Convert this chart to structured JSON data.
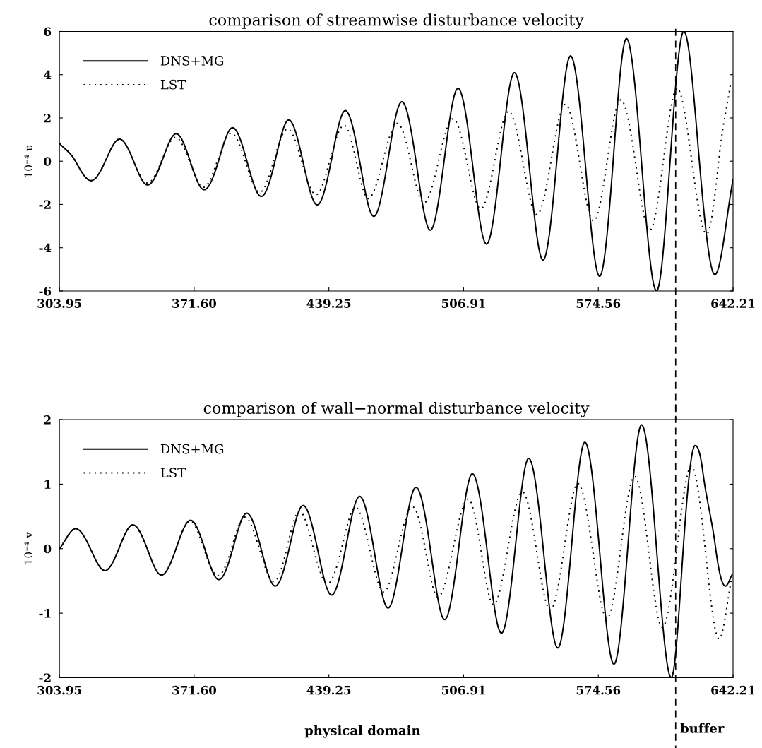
{
  "chart_data": [
    {
      "type": "line",
      "title": "comparison of streamwise disturbance velocity",
      "ylabel": "10⁻⁴ u",
      "xlim": [
        303.95,
        642.21
      ],
      "xticks": [
        303.95,
        {
          "value": 371.6,
          "label": "371.60"
        },
        439.25,
        506.91,
        574.56,
        642.21
      ],
      "ylim": [
        -6,
        6
      ],
      "yticks": [
        -6,
        -4,
        -2,
        0,
        2,
        4,
        6
      ],
      "grid": false,
      "legend": "top left",
      "ref_lines": [
        {
          "axis": "x",
          "value": 613.4,
          "line_style": "dashed",
          "color": "#000000"
        }
      ],
      "series": [
        {
          "name": "DNS+MG",
          "color": "#000000",
          "line_style": "solid",
          "x": [
            304,
            312,
            319.8,
            327,
            334.1,
            341.2,
            348.2,
            355.4,
            362.6,
            369.6,
            376.6,
            383.8,
            390.9,
            398.1,
            405.3,
            412.2,
            419.1,
            426.2,
            433.4,
            440.4,
            447.5,
            454.7,
            461.8,
            468.8,
            475.9,
            483,
            490.2,
            497.1,
            504.1,
            511.2,
            518.4,
            525.4,
            532.4,
            539.6,
            546.8,
            553.7,
            560.6,
            567.9,
            575.2,
            582,
            588.7,
            596.2,
            603.8,
            610.6,
            617.5,
            625.3,
            633.1,
            642.2
          ],
          "values": [
            0.82,
            0,
            -0.9,
            0,
            1.02,
            0,
            -1.1,
            0,
            1.27,
            0,
            -1.32,
            0,
            1.55,
            0,
            -1.63,
            0,
            1.91,
            0,
            -2.02,
            0,
            2.34,
            0,
            -2.55,
            0,
            2.75,
            0,
            -3.19,
            0,
            3.37,
            0,
            -3.83,
            0,
            4.09,
            0,
            -4.57,
            0,
            4.87,
            0,
            -5.32,
            0,
            5.67,
            0,
            -6,
            0,
            6,
            0,
            -5.24,
            -0.85
          ]
        },
        {
          "name": "LST",
          "color": "#000000",
          "line_style": "dotted",
          "x": [
            304,
            312,
            319.8,
            327,
            334.1,
            341.2,
            348.2,
            355.2,
            362.2,
            369.2,
            376.2,
            383.2,
            390.2,
            397.3,
            404.5,
            411.5,
            418.5,
            425.6,
            432.8,
            439.6,
            446.9,
            453,
            459,
            466.3,
            473.7,
            480.3,
            487,
            494.3,
            501.6,
            508.5,
            515.5,
            522.5,
            529.5,
            536.6,
            543.7,
            550.8,
            558,
            565.1,
            572.2,
            579,
            585.8,
            593.1,
            600.4,
            607.2,
            614.1,
            621.5,
            628.9,
            635,
            641
          ],
          "values": [
            0.82,
            0,
            -0.9,
            0,
            1.02,
            0,
            -1.01,
            0,
            1.1,
            0,
            -1.21,
            0,
            1.29,
            0,
            -1.44,
            0,
            1.49,
            0,
            -1.55,
            0,
            1.66,
            0,
            -1.73,
            0,
            1.75,
            0,
            -1.93,
            0,
            1.96,
            0,
            -2.2,
            0,
            2.31,
            0,
            -2.47,
            0,
            2.63,
            0,
            -2.76,
            0,
            2.84,
            0,
            -3.19,
            0,
            3.37,
            0,
            -3.37,
            0,
            3.6
          ]
        }
      ]
    },
    {
      "type": "line",
      "title": "comparison of wall−normal disturbance velocity",
      "ylabel": "10⁻⁴ v",
      "xlim": [
        303.95,
        642.21
      ],
      "xticks": [
        303.95,
        {
          "value": 371.6,
          "label": "371.60"
        },
        439.25,
        506.91,
        574.56,
        642.21
      ],
      "ylim": [
        -2,
        2
      ],
      "yticks": [
        -2,
        -1,
        0,
        1,
        2
      ],
      "grid": false,
      "legend": "top left",
      "annotations": [
        "physical domain"
      ],
      "ref_lines": [
        {
          "axis": "x",
          "value": 613.4,
          "label": "buffer",
          "line_style": "dashed",
          "color": "#000000"
        }
      ],
      "series": [
        {
          "name": "DNS+MG",
          "color": "#000000",
          "line_style": "solid",
          "x": [
            304,
            312.1,
            319.5,
            326.8,
            333.8,
            340.8,
            348,
            355.2,
            362.5,
            369.8,
            376.9,
            384,
            391,
            398,
            405.2,
            412.3,
            419.3,
            426.3,
            433.5,
            440.6,
            447.6,
            454.7,
            461.8,
            469,
            476,
            483,
            490.2,
            497.4,
            504.4,
            511.3,
            518.6,
            525.9,
            532.8,
            539.6,
            546.9,
            554.2,
            561,
            567.8,
            575.1,
            582.4,
            589.3,
            596.3,
            603.8,
            611.2,
            617.2,
            623.2,
            627,
            633.5,
            638.4,
            641.8
          ],
          "values": [
            0,
            0.31,
            0,
            -0.34,
            0,
            0.37,
            0,
            -0.41,
            0,
            0.44,
            0,
            -0.48,
            0,
            0.55,
            0,
            -0.58,
            0,
            0.67,
            0,
            -0.72,
            0,
            0.81,
            0,
            -0.92,
            0,
            0.95,
            0,
            -1.1,
            0,
            1.16,
            0,
            -1.31,
            0,
            1.4,
            0,
            -1.54,
            0,
            1.65,
            0,
            -1.79,
            0,
            1.92,
            0,
            -2,
            0,
            1.6,
            1.2,
            0,
            -0.58,
            -0.4
          ]
        },
        {
          "name": "LST",
          "color": "#000000",
          "line_style": "dotted",
          "x": [
            304,
            312.1,
            319.5,
            326.8,
            333.8,
            340.8,
            348,
            355.2,
            362.5,
            369.5,
            376.5,
            383.6,
            390.3,
            397,
            404.3,
            411.7,
            418.1,
            424.5,
            431.5,
            438.6,
            445.6,
            452.6,
            459.7,
            466.8,
            474,
            481.3,
            487.6,
            494,
            501.6,
            509.2,
            515.5,
            521.9,
            529.1,
            536.4,
            543.4,
            550.4,
            557.4,
            564.3,
            571.6,
            578.9,
            585.8,
            592.8,
            599.7,
            606.7,
            614,
            621.3,
            628.2,
            635.2,
            641.6
          ],
          "values": [
            0,
            0.31,
            0,
            -0.34,
            0,
            0.37,
            0,
            -0.4,
            0,
            0.43,
            0,
            -0.42,
            0,
            0.49,
            0,
            -0.51,
            0,
            0.58,
            0,
            -0.54,
            0,
            0.64,
            0,
            -0.67,
            0,
            0.65,
            0,
            -0.75,
            0,
            0.77,
            0,
            -0.87,
            0,
            0.88,
            0,
            -0.95,
            0,
            1.01,
            0,
            -1.08,
            0,
            1.12,
            0,
            -1.22,
            0,
            1.28,
            0,
            -1.4,
            -0.44
          ]
        }
      ]
    }
  ]
}
